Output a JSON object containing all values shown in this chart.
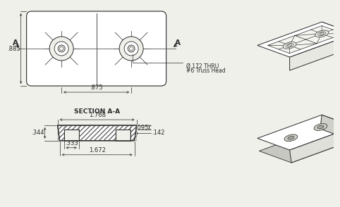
{
  "bg_color": "#f0f0eb",
  "line_color": "#2a2a2a",
  "dim_color": "#2a2a2a",
  "title_section": "SECTION A-A",
  "dim_885": ".885",
  "dim_875": ".875",
  "dim_172a": "Ø.172 THRU",
  "dim_172b": "#6 Truss Head",
  "dim_1768": "1.768",
  "dim_095": ".095",
  "dim_344": ".344",
  "dim_333": ".333",
  "dim_142": ".142",
  "dim_1672": "1.672",
  "fontsize_dim": 6.0,
  "fontsize_title": 6.5,
  "fontsize_label": 7.5
}
